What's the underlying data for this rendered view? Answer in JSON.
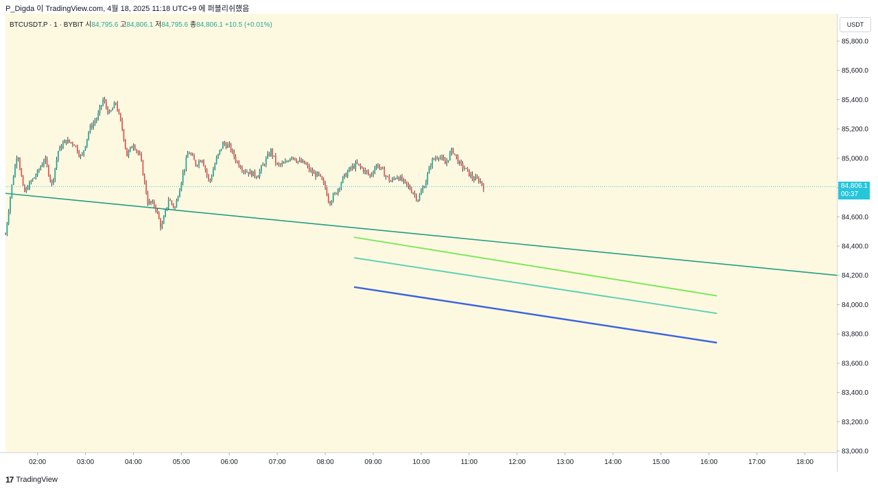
{
  "header": {
    "publish_text": "P_Digda 이 TradingView.com, 4월 18, 2025 11:18 UTC+9 에 퍼블리쉬했음"
  },
  "legend": {
    "symbol": "BTCUSDT.P · 1 · BYBIT",
    "open_label": "시",
    "open": "84,795.6",
    "high_label": "고",
    "high": "84,806.1",
    "low_label": "저",
    "low": "84,795.6",
    "close_label": "종",
    "close": "84,806.1",
    "change": "+10.5 (+0.01%)"
  },
  "price_axis": {
    "unit": "USDT",
    "last_price": "84,806.1",
    "countdown": "00:37"
  },
  "footer": {
    "brand": "TradingView"
  },
  "colors": {
    "background": "#fdf9e0",
    "up": "#26a69a",
    "down": "#ef5350",
    "wick": "#131722",
    "trend_main": "#1e9e84",
    "trend_green": "#7de85b",
    "trend_teal": "#5fd1b8",
    "trend_blue": "#3c64e0",
    "price_tag": "#26c6da"
  },
  "chart_data": {
    "type": "line",
    "title": "",
    "xlabel": "",
    "ylabel": "",
    "x_ticks": [
      "02:00",
      "03:00",
      "04:00",
      "05:00",
      "06:00",
      "07:00",
      "08:00",
      "09:00",
      "10:00",
      "11:00",
      "12:00",
      "13:00",
      "14:00",
      "15:00",
      "16:00",
      "17:00",
      "18:00"
    ],
    "y_ticks": [
      83000,
      83200,
      83400,
      83600,
      83800,
      84000,
      84200,
      84400,
      84600,
      84800,
      85000,
      85200,
      85400,
      85600,
      85800
    ],
    "y_tick_labels": [
      "83,000.0",
      "83,200.0",
      "83,400.0",
      "83,600.0",
      "83,800.0",
      "84,000.0",
      "84,200.0",
      "84,400.0",
      "84,600.0",
      "84,800.0",
      "85,000.0",
      "85,200.0",
      "85,400.0",
      "85,600.0",
      "85,800.0"
    ],
    "ylim": [
      83000,
      85800
    ],
    "xlim": [
      "01:20",
      "18:40"
    ],
    "grid": false,
    "last_price": 84806.1,
    "price_path": [
      {
        "x": "01:20",
        "y": 84480
      },
      {
        "x": "01:27",
        "y": 84780
      },
      {
        "x": "01:35",
        "y": 85050
      },
      {
        "x": "01:43",
        "y": 84760
      },
      {
        "x": "01:52",
        "y": 84840
      },
      {
        "x": "02:00",
        "y": 84900
      },
      {
        "x": "02:09",
        "y": 85000
      },
      {
        "x": "02:18",
        "y": 84820
      },
      {
        "x": "02:26",
        "y": 85050
      },
      {
        "x": "02:35",
        "y": 85120
      },
      {
        "x": "02:46",
        "y": 85100
      },
      {
        "x": "02:55",
        "y": 85000
      },
      {
        "x": "03:05",
        "y": 85200
      },
      {
        "x": "03:15",
        "y": 85280
      },
      {
        "x": "03:22",
        "y": 85400
      },
      {
        "x": "03:30",
        "y": 85300
      },
      {
        "x": "03:38",
        "y": 85380
      },
      {
        "x": "03:46",
        "y": 85200
      },
      {
        "x": "03:52",
        "y": 85020
      },
      {
        "x": "04:00",
        "y": 85100
      },
      {
        "x": "04:09",
        "y": 85000
      },
      {
        "x": "04:18",
        "y": 84700
      },
      {
        "x": "04:27",
        "y": 84680
      },
      {
        "x": "04:35",
        "y": 84520
      },
      {
        "x": "04:44",
        "y": 84720
      },
      {
        "x": "04:52",
        "y": 84660
      },
      {
        "x": "05:00",
        "y": 84850
      },
      {
        "x": "05:09",
        "y": 85050
      },
      {
        "x": "05:18",
        "y": 84960
      },
      {
        "x": "05:26",
        "y": 85000
      },
      {
        "x": "05:35",
        "y": 84830
      },
      {
        "x": "05:43",
        "y": 84980
      },
      {
        "x": "05:52",
        "y": 85100
      },
      {
        "x": "06:00",
        "y": 85080
      },
      {
        "x": "06:09",
        "y": 84980
      },
      {
        "x": "06:18",
        "y": 84920
      },
      {
        "x": "06:26",
        "y": 84900
      },
      {
        "x": "06:35",
        "y": 84880
      },
      {
        "x": "06:43",
        "y": 84960
      },
      {
        "x": "06:52",
        "y": 85050
      },
      {
        "x": "07:00",
        "y": 84950
      },
      {
        "x": "07:09",
        "y": 84960
      },
      {
        "x": "07:18",
        "y": 85020
      },
      {
        "x": "07:26",
        "y": 84980
      },
      {
        "x": "07:35",
        "y": 84960
      },
      {
        "x": "07:43",
        "y": 84900
      },
      {
        "x": "07:52",
        "y": 84880
      },
      {
        "x": "08:00",
        "y": 84800
      },
      {
        "x": "08:05",
        "y": 84700
      },
      {
        "x": "08:13",
        "y": 84760
      },
      {
        "x": "08:22",
        "y": 84860
      },
      {
        "x": "08:30",
        "y": 84920
      },
      {
        "x": "08:39",
        "y": 84960
      },
      {
        "x": "08:48",
        "y": 84920
      },
      {
        "x": "08:56",
        "y": 84880
      },
      {
        "x": "09:05",
        "y": 84960
      },
      {
        "x": "09:13",
        "y": 84900
      },
      {
        "x": "09:22",
        "y": 84840
      },
      {
        "x": "09:30",
        "y": 84880
      },
      {
        "x": "09:39",
        "y": 84830
      },
      {
        "x": "09:48",
        "y": 84780
      },
      {
        "x": "09:56",
        "y": 84720
      },
      {
        "x": "10:05",
        "y": 84830
      },
      {
        "x": "10:13",
        "y": 84980
      },
      {
        "x": "10:22",
        "y": 85020
      },
      {
        "x": "10:30",
        "y": 84960
      },
      {
        "x": "10:39",
        "y": 85060
      },
      {
        "x": "10:48",
        "y": 84960
      },
      {
        "x": "10:56",
        "y": 84920
      },
      {
        "x": "11:05",
        "y": 84860
      },
      {
        "x": "11:13",
        "y": 84850
      },
      {
        "x": "11:18",
        "y": 84806
      }
    ],
    "trendlines": [
      {
        "start": {
          "x": "01:20",
          "y": 84760
        },
        "end": {
          "x": "18:40",
          "y": 84200
        },
        "color": "#1e9e84"
      },
      {
        "start": {
          "x": "08:36",
          "y": 84460
        },
        "end": {
          "x": "16:10",
          "y": 84060
        },
        "color": "#7de85b"
      },
      {
        "start": {
          "x": "08:36",
          "y": 84320
        },
        "end": {
          "x": "16:10",
          "y": 83940
        },
        "color": "#5fd1b8"
      },
      {
        "start": {
          "x": "08:36",
          "y": 84120
        },
        "end": {
          "x": "16:10",
          "y": 83740
        },
        "color": "#3c64e0"
      }
    ]
  }
}
